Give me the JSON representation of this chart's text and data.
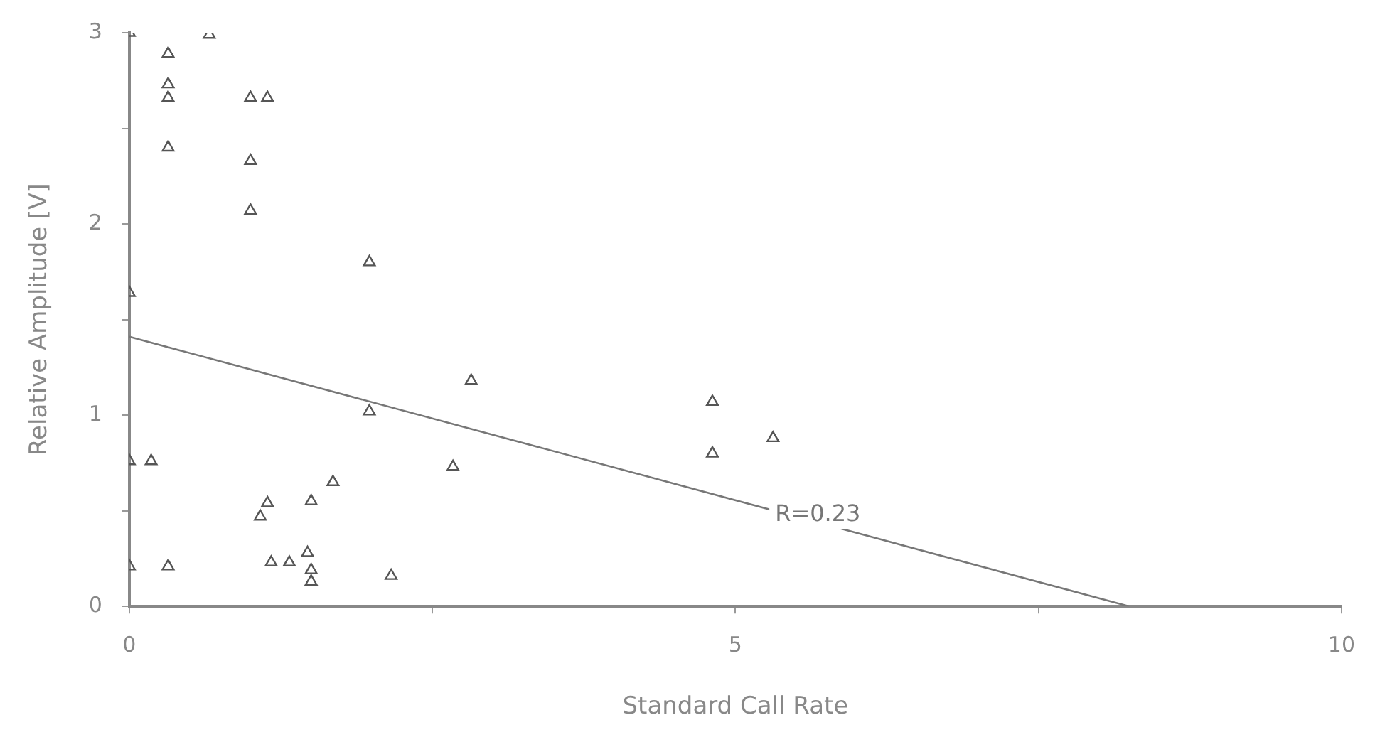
{
  "chart_data": {
    "type": "scatter",
    "xlabel": "Standard Call Rate",
    "ylabel": "Relative Amplitude [V]",
    "xlim": [
      0,
      10
    ],
    "ylim": [
      0,
      3
    ],
    "xticks": [
      0,
      {
        "value": 2.5,
        "label": null
      },
      5,
      {
        "value": 7.5,
        "label": null
      },
      10
    ],
    "yticks": [
      0,
      {
        "value": 0.5,
        "label": null
      },
      1,
      {
        "value": 1.5,
        "label": null
      },
      2,
      {
        "value": 2.5,
        "label": null
      },
      3
    ],
    "grid": false,
    "legend": false,
    "series": [
      {
        "color": "#555555",
        "marker": "triangle",
        "x": [
          0,
          0.66,
          0.32,
          0.32,
          0.32,
          1.0,
          1.14,
          0.32,
          1.0,
          1.0,
          1.98,
          0,
          1.98,
          0,
          0.18,
          2.67,
          1.68,
          1.5,
          1.14,
          1.08,
          0,
          0.32,
          1.17,
          1.32,
          1.47,
          1.5,
          1.5,
          2.16,
          2.82,
          4.81,
          4.81,
          5.31
        ],
        "values": [
          3.0,
          2.99,
          2.89,
          2.73,
          2.66,
          2.66,
          2.66,
          2.4,
          2.33,
          2.07,
          1.8,
          1.64,
          1.02,
          0.76,
          0.76,
          0.73,
          0.65,
          0.55,
          0.54,
          0.47,
          0.21,
          0.21,
          0.23,
          0.23,
          0.28,
          0.19,
          0.13,
          0.16,
          1.18,
          1.07,
          0.8,
          0.88
        ]
      },
      {
        "type": "line",
        "color": "#777777",
        "x": [
          0,
          8.25
        ],
        "values": [
          1.41,
          0
        ]
      }
    ],
    "annotations": [
      "R=0.23"
    ]
  }
}
